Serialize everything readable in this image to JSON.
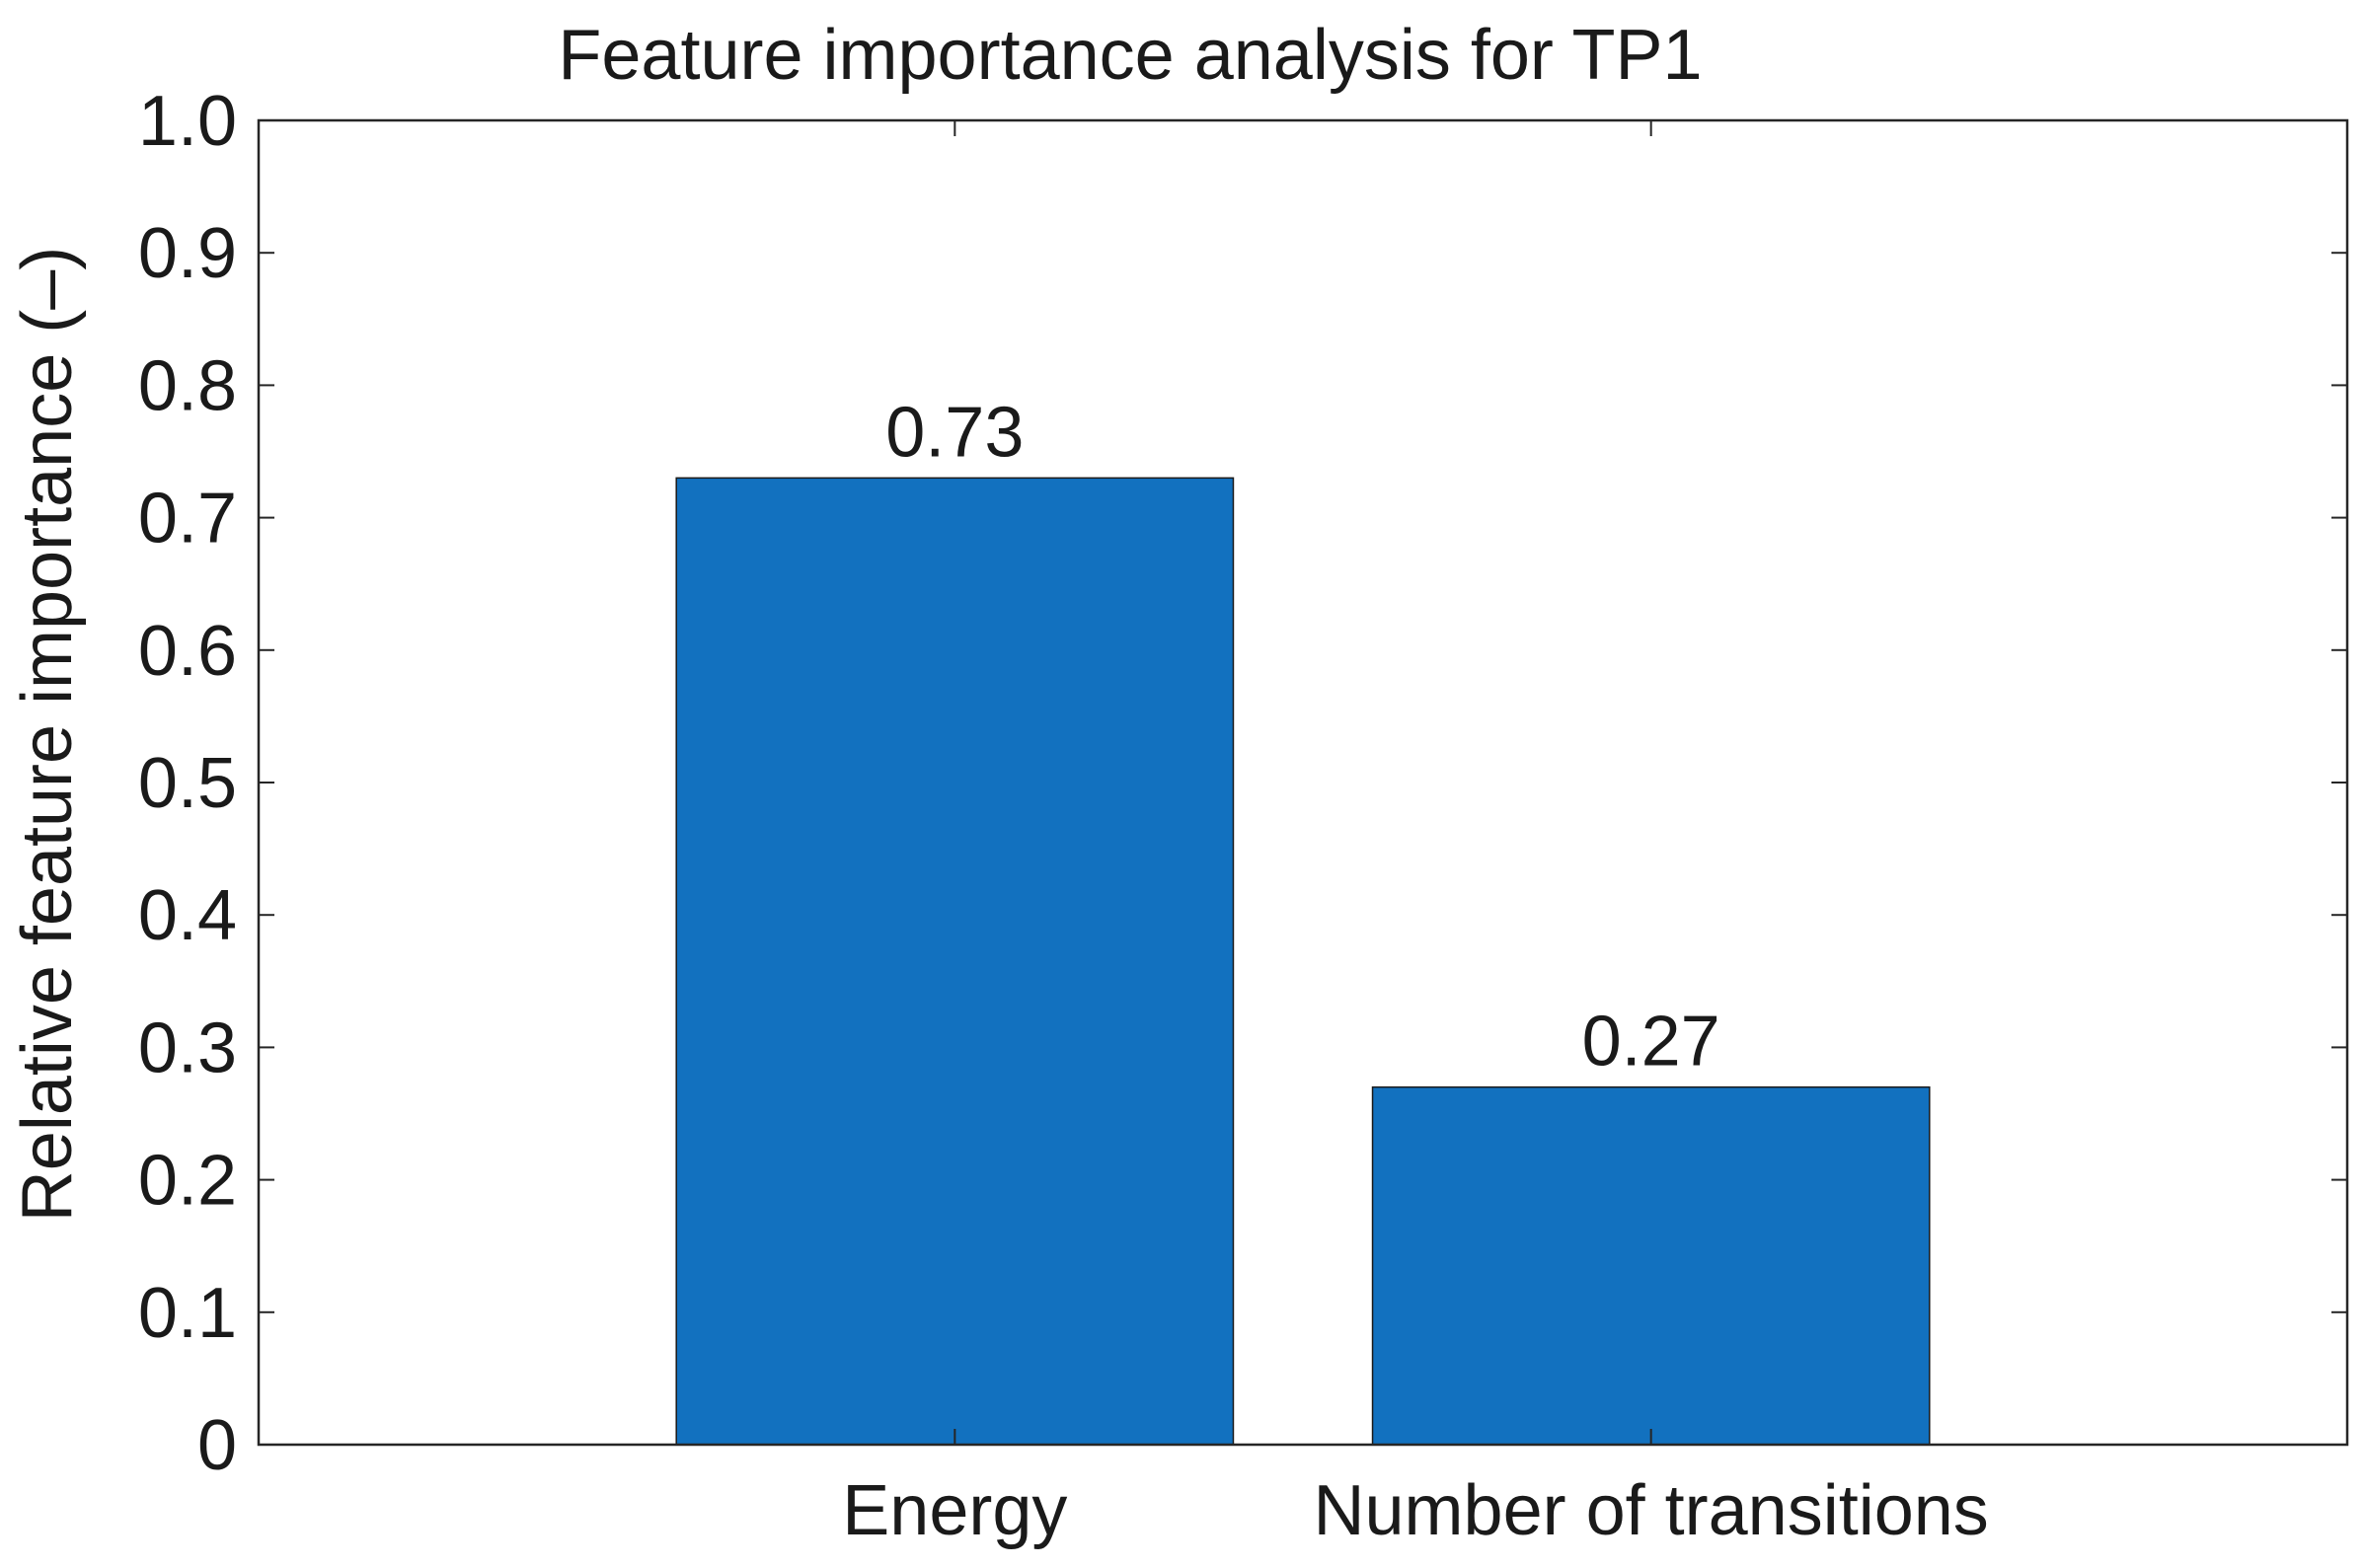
{
  "chart_data": {
    "type": "bar",
    "title": "Feature importance analysis for TP1",
    "xlabel": "",
    "ylabel": "Relative feature importance (–)",
    "categories": [
      "Energy",
      "Number of transitions"
    ],
    "values": [
      0.73,
      0.27
    ],
    "data_labels": [
      "0.73",
      "0.27"
    ],
    "ylim": [
      0,
      1.0
    ],
    "yticks": [
      "0",
      "0.1",
      "0.2",
      "0.3",
      "0.4",
      "0.5",
      "0.6",
      "0.7",
      "0.8",
      "0.9",
      "1.0"
    ],
    "xlim": [
      0,
      3
    ],
    "bar_color": "#1271bf",
    "grid": false,
    "legend": "none"
  }
}
